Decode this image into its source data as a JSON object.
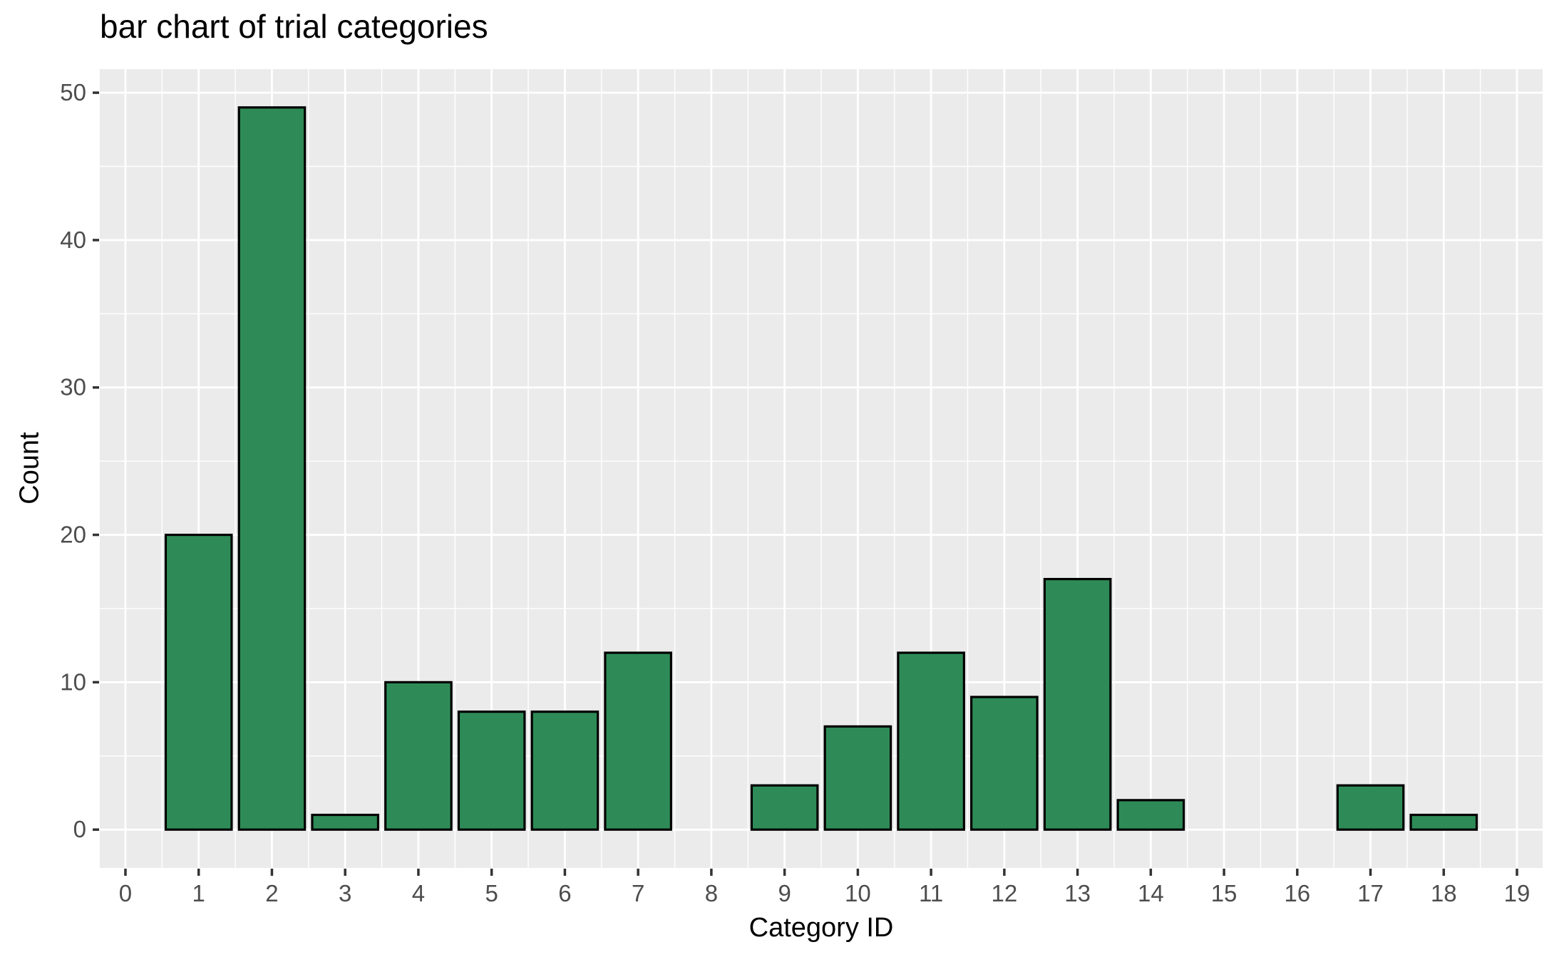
{
  "chart_data": {
    "type": "bar",
    "title": "bar chart of trial categories",
    "xlabel": "Category ID",
    "ylabel": "Count",
    "categories": [
      0,
      1,
      2,
      3,
      4,
      5,
      6,
      7,
      8,
      9,
      10,
      11,
      12,
      13,
      14,
      15,
      16,
      17,
      18,
      19
    ],
    "values": [
      0,
      20,
      49,
      1,
      10,
      8,
      8,
      12,
      0,
      3,
      7,
      12,
      9,
      17,
      2,
      0,
      0,
      3,
      1,
      0
    ],
    "xticks": [
      0,
      1,
      2,
      3,
      4,
      5,
      6,
      7,
      8,
      9,
      10,
      11,
      12,
      13,
      14,
      15,
      16,
      17,
      18,
      19
    ],
    "yticks": [
      0,
      10,
      20,
      30,
      40,
      50
    ],
    "xlim": [
      -0.35,
      19.35
    ],
    "ylim": [
      -2.6,
      51.6
    ],
    "bar_width": 0.9,
    "grid": "major-and-minor",
    "legend": "none",
    "colors": {
      "bar_fill": "#2e8b57",
      "bar_stroke": "#000000",
      "panel_background": "#ebebeb",
      "gridline": "#ffffff",
      "tick_label": "#4d4d4d",
      "tick_mark": "#333333",
      "axis_title": "#000000",
      "title": "#000000",
      "figure_background": "#ffffff"
    }
  }
}
